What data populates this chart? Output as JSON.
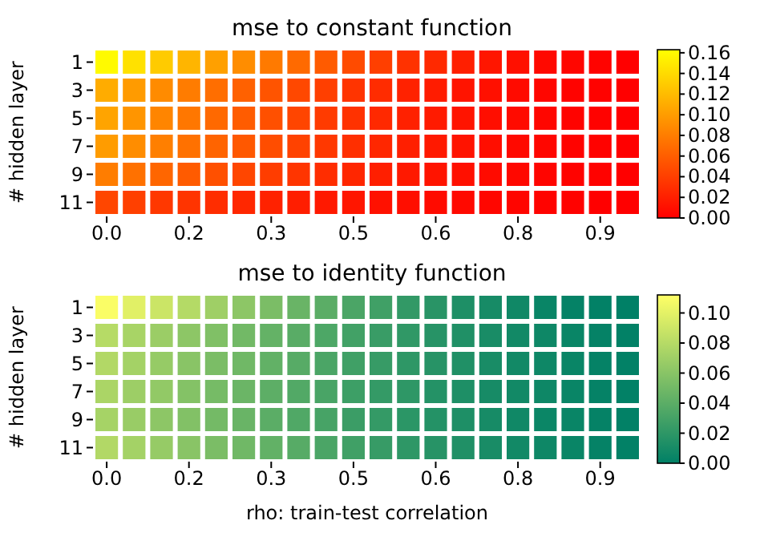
{
  "chart_data": [
    {
      "type": "heatmap",
      "title": "mse to constant function",
      "ylabel": "# hidden layer",
      "categories": [
        "0.0",
        null,
        null,
        "0.2",
        null,
        null,
        "0.3",
        null,
        null,
        "0.5",
        null,
        null,
        "0.6",
        null,
        null,
        "0.8",
        null,
        null,
        "0.9",
        null
      ],
      "y_categories": [
        "1",
        "3",
        "5",
        "7",
        "9",
        "11"
      ],
      "cells": [
        [
          0.16,
          0.144,
          0.13,
          0.116,
          0.102,
          0.09,
          0.078,
          0.068,
          0.058,
          0.048,
          0.04,
          0.032,
          0.026,
          0.02,
          0.014,
          0.01,
          0.006,
          0.004,
          0.002,
          0.0
        ],
        [
          0.11,
          0.099,
          0.089,
          0.079,
          0.07,
          0.062,
          0.054,
          0.046,
          0.04,
          0.033,
          0.028,
          0.022,
          0.018,
          0.013,
          0.01,
          0.007,
          0.004,
          0.002,
          0.001,
          0.0
        ],
        [
          0.105,
          0.095,
          0.085,
          0.076,
          0.067,
          0.059,
          0.051,
          0.044,
          0.038,
          0.032,
          0.026,
          0.021,
          0.017,
          0.013,
          0.009,
          0.007,
          0.004,
          0.002,
          0.001,
          0.0
        ],
        [
          0.1,
          0.09,
          0.081,
          0.072,
          0.064,
          0.056,
          0.049,
          0.042,
          0.036,
          0.03,
          0.025,
          0.02,
          0.016,
          0.012,
          0.009,
          0.006,
          0.004,
          0.002,
          0.001,
          0.0
        ],
        [
          0.08,
          0.072,
          0.065,
          0.058,
          0.051,
          0.045,
          0.039,
          0.034,
          0.029,
          0.024,
          0.02,
          0.016,
          0.013,
          0.01,
          0.007,
          0.005,
          0.003,
          0.002,
          0.001,
          0.0
        ],
        [
          0.045,
          0.041,
          0.036,
          0.033,
          0.029,
          0.025,
          0.022,
          0.019,
          0.016,
          0.014,
          0.011,
          0.009,
          0.007,
          0.006,
          0.004,
          0.003,
          0.002,
          0.001,
          0.0,
          0.0
        ]
      ],
      "colors": [
        "#ff0000",
        "#ffff00"
      ],
      "clim": [
        0,
        0.163
      ],
      "cticks": [
        {
          "value": 0,
          "label": "0.00"
        },
        {
          "value": 0.02,
          "label": "0.02"
        },
        {
          "value": 0.04,
          "label": "0.04"
        },
        {
          "value": 0.06,
          "label": "0.06"
        },
        {
          "value": 0.08,
          "label": "0.08"
        },
        {
          "value": 0.1,
          "label": "0.10"
        },
        {
          "value": 0.12,
          "label": "0.12"
        },
        {
          "value": 0.14,
          "label": "0.14"
        },
        {
          "value": 0.16,
          "label": "0.16"
        }
      ]
    },
    {
      "type": "heatmap",
      "title": "mse to identity function",
      "ylabel": "# hidden layer",
      "xlabel": "rho: train-test correlation",
      "categories": [
        "0.0",
        null,
        null,
        "0.2",
        null,
        null,
        "0.3",
        null,
        null,
        "0.5",
        null,
        null,
        "0.6",
        null,
        null,
        "0.8",
        null,
        null,
        "0.9",
        null
      ],
      "y_categories": [
        "1",
        "3",
        "5",
        "7",
        "9",
        "11"
      ],
      "cells": [
        [
          0.11,
          0.099,
          0.089,
          0.079,
          0.07,
          0.062,
          0.054,
          0.046,
          0.04,
          0.033,
          0.028,
          0.022,
          0.018,
          0.013,
          0.01,
          0.007,
          0.004,
          0.002,
          0.001,
          0.0
        ],
        [
          0.08,
          0.074,
          0.068,
          0.062,
          0.056,
          0.05,
          0.044,
          0.039,
          0.034,
          0.029,
          0.025,
          0.021,
          0.017,
          0.014,
          0.011,
          0.008,
          0.006,
          0.004,
          0.002,
          0.001
        ],
        [
          0.078,
          0.072,
          0.066,
          0.06,
          0.054,
          0.049,
          0.043,
          0.038,
          0.033,
          0.028,
          0.024,
          0.02,
          0.017,
          0.014,
          0.011,
          0.008,
          0.006,
          0.004,
          0.002,
          0.001
        ],
        [
          0.075,
          0.069,
          0.064,
          0.058,
          0.052,
          0.047,
          0.041,
          0.036,
          0.032,
          0.027,
          0.023,
          0.02,
          0.016,
          0.013,
          0.01,
          0.008,
          0.006,
          0.004,
          0.002,
          0.001
        ],
        [
          0.073,
          0.067,
          0.062,
          0.057,
          0.051,
          0.046,
          0.04,
          0.035,
          0.031,
          0.026,
          0.023,
          0.019,
          0.016,
          0.013,
          0.01,
          0.007,
          0.005,
          0.004,
          0.002,
          0.001
        ],
        [
          0.078,
          0.072,
          0.066,
          0.06,
          0.054,
          0.049,
          0.043,
          0.038,
          0.033,
          0.028,
          0.024,
          0.02,
          0.017,
          0.014,
          0.011,
          0.008,
          0.006,
          0.004,
          0.002,
          0.001
        ]
      ],
      "colors": [
        "#008066",
        "#ffff66"
      ],
      "clim": [
        0,
        0.112
      ],
      "cticks": [
        {
          "value": 0,
          "label": "0.00"
        },
        {
          "value": 0.02,
          "label": "0.02"
        },
        {
          "value": 0.04,
          "label": "0.04"
        },
        {
          "value": 0.06,
          "label": "0.06"
        },
        {
          "value": 0.08,
          "label": "0.08"
        },
        {
          "value": 0.1,
          "label": "0.10"
        }
      ]
    }
  ]
}
